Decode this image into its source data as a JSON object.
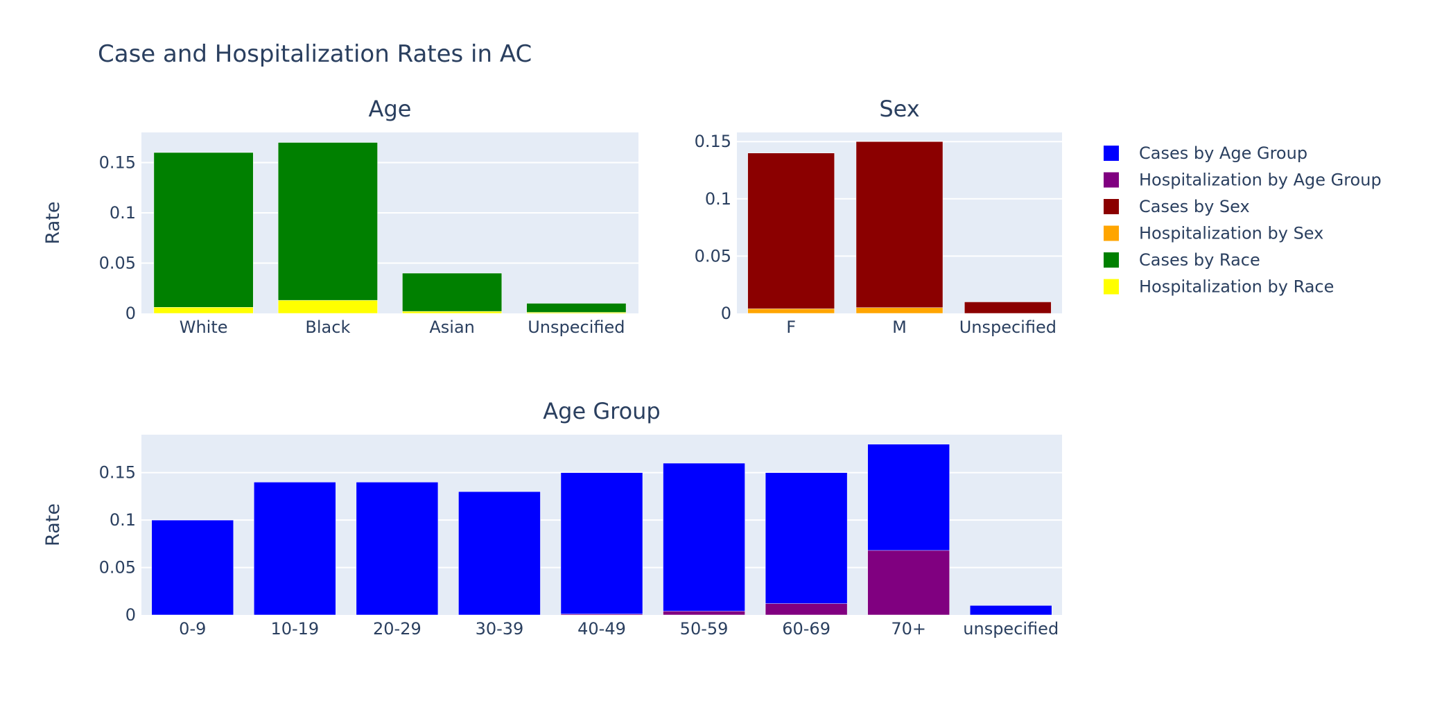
{
  "figure_title": "Case and Hospitalization Rates in AC",
  "colors": {
    "plot_background": "#e5ecf6",
    "grid": "#ffffff",
    "text": "#2a3f5f"
  },
  "legend": [
    {
      "label": "Cases by Age Group",
      "color": "#0000ff"
    },
    {
      "label": "Hospitalization by Age Group",
      "color": "#800080"
    },
    {
      "label": "Cases by Sex",
      "color": "#8b0000"
    },
    {
      "label": "Hospitalization by Sex",
      "color": "#ffa500"
    },
    {
      "label": "Cases by Race",
      "color": "#008000"
    },
    {
      "label": "Hospitalization by Race",
      "color": "#ffff00"
    }
  ],
  "chart_data": [
    {
      "type": "bar",
      "barmode": "overlay",
      "title": "Age",
      "ylabel": "Rate",
      "categories": [
        "White",
        "Black",
        "Asian",
        "Unspecified"
      ],
      "ylim": [
        0,
        0.18
      ],
      "yticks": [
        0,
        0.05,
        0.1,
        0.15
      ],
      "ytick_labels": [
        "0",
        "0.05",
        "0.1",
        "0.15"
      ],
      "series": [
        {
          "name": "Cases by Race",
          "color": "#008000",
          "values": [
            0.16,
            0.17,
            0.04,
            0.01
          ]
        },
        {
          "name": "Hospitalization by Race",
          "color": "#ffff00",
          "values": [
            0.006,
            0.013,
            0.002,
            0.001
          ]
        }
      ]
    },
    {
      "type": "bar",
      "barmode": "overlay",
      "title": "Sex",
      "ylabel": "",
      "categories": [
        "F",
        "M",
        "Unspecified"
      ],
      "ylim": [
        0,
        0.158
      ],
      "yticks": [
        0,
        0.05,
        0.1,
        0.15
      ],
      "ytick_labels": [
        "0",
        "0.05",
        "0.1",
        "0.15"
      ],
      "series": [
        {
          "name": "Cases by Sex",
          "color": "#8b0000",
          "values": [
            0.14,
            0.15,
            0.01
          ]
        },
        {
          "name": "Hospitalization by Sex",
          "color": "#ffa500",
          "values": [
            0.004,
            0.005,
            0.0
          ]
        }
      ]
    },
    {
      "type": "bar",
      "barmode": "overlay",
      "title": "Age Group",
      "ylabel": "Rate",
      "categories": [
        "0-9",
        "10-19",
        "20-29",
        "30-39",
        "40-49",
        "50-59",
        "60-69",
        "70+",
        "unspecified"
      ],
      "ylim": [
        0,
        0.19
      ],
      "yticks": [
        0,
        0.05,
        0.1,
        0.15
      ],
      "ytick_labels": [
        "0",
        "0.05",
        "0.1",
        "0.15"
      ],
      "series": [
        {
          "name": "Cases by Age Group",
          "color": "#0000ff",
          "values": [
            0.1,
            0.14,
            0.14,
            0.13,
            0.15,
            0.16,
            0.15,
            0.18,
            0.01
          ]
        },
        {
          "name": "Hospitalization by Age Group",
          "color": "#800080",
          "values": [
            0.0,
            0.0,
            0.0,
            0.0,
            0.001,
            0.004,
            0.012,
            0.068,
            0.0
          ]
        }
      ]
    }
  ]
}
